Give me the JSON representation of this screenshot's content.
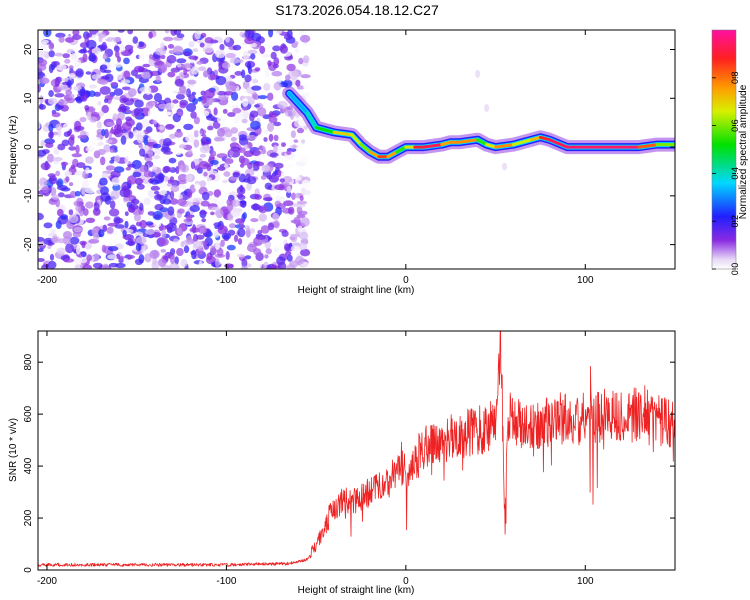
{
  "title": "S173.2026.054.18.12.C27",
  "chart_data": [
    {
      "type": "heatmap",
      "xlabel": "Height of straight line (km)",
      "ylabel": "Frequency (Hz)",
      "xlim": [
        -205,
        150
      ],
      "ylim": [
        -25,
        24
      ],
      "x_ticks": [
        -200,
        -100,
        0,
        100
      ],
      "y_ticks": [
        -20,
        -10,
        0,
        10,
        20
      ],
      "colorbar": {
        "label": "Normalized spectral amplitude",
        "range": [
          0.0,
          1.0
        ],
        "ticks": [
          0.0,
          0.2,
          0.4,
          0.6,
          0.8
        ]
      },
      "noise_region_x": [
        -205,
        -55
      ],
      "ridge": {
        "x": [
          -65,
          -55,
          -50,
          -40,
          -30,
          -25,
          -20,
          -15,
          -10,
          -5,
          0,
          5,
          10,
          20,
          25,
          30,
          40,
          45,
          50,
          60,
          70,
          75,
          80,
          90,
          100,
          110,
          120,
          130,
          140,
          150
        ],
        "freq": [
          11,
          7,
          4,
          3,
          2.5,
          0.5,
          -1,
          -2,
          -2,
          -1,
          0,
          0,
          0,
          0.5,
          1,
          1,
          1.5,
          0.5,
          0,
          0.5,
          1.5,
          2,
          1.5,
          0,
          0,
          0,
          0,
          0,
          0.5,
          0.5
        ],
        "amplitude": [
          0.3,
          0.35,
          0.45,
          0.6,
          0.8,
          0.5,
          0.7,
          0.8,
          0.9,
          0.6,
          0.5,
          0.85,
          0.95,
          0.9,
          0.6,
          0.95,
          0.6,
          0.5,
          0.85,
          0.7,
          0.6,
          0.85,
          0.9,
          0.95,
          0.95,
          0.95,
          0.95,
          0.95,
          0.7,
          0.5
        ]
      }
    },
    {
      "type": "line",
      "xlabel": "Height of straight line (km)",
      "ylabel": "SNR (10 * v/v)",
      "xlim": [
        -205,
        150
      ],
      "ylim": [
        0,
        920
      ],
      "x_ticks": [
        -200,
        -100,
        0,
        100
      ],
      "y_ticks": [
        0,
        200,
        400,
        600,
        800
      ],
      "series": [
        {
          "name": "SNR",
          "color": "#ee2222",
          "x": [
            -205,
            -150,
            -100,
            -65,
            -55,
            -48,
            -42,
            -38,
            -35,
            -30,
            -20,
            -10,
            -5,
            0,
            5,
            10,
            20,
            30,
            40,
            50,
            53,
            55,
            57,
            60,
            70,
            80,
            90,
            100,
            110,
            120,
            130,
            140,
            150
          ],
          "values": [
            20,
            20,
            20,
            25,
            40,
            120,
            220,
            250,
            270,
            260,
            300,
            330,
            400,
            380,
            420,
            480,
            500,
            520,
            540,
            560,
            880,
            200,
            600,
            580,
            560,
            570,
            590,
            580,
            600,
            590,
            600,
            580,
            570
          ]
        }
      ]
    }
  ]
}
